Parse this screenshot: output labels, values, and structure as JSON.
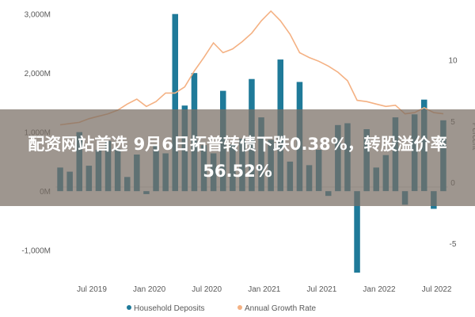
{
  "banner": {
    "headline": "配资网站首选 9月6日拓普转债下跌0.38%，转股溢价率56.52%"
  },
  "chart_data": {
    "type": "bar",
    "title": "",
    "y_left": {
      "ticks": [
        "3,000M",
        "2,000M",
        "1,000M",
        "0M",
        "-1,000M"
      ],
      "ylim": [
        -1300,
        3050
      ]
    },
    "y_right": {
      "label": "Percent",
      "ticks": [
        "10",
        "5",
        "0",
        "-5"
      ],
      "ylim": [
        -7,
        14
      ]
    },
    "x_ticks": [
      "Jul 2019",
      "Jan 2020",
      "Jul 2020",
      "Jan 2021",
      "Jul 2021",
      "Jan 2022",
      "Jul 2022"
    ],
    "series": [
      {
        "name": "Household Deposits",
        "type": "bar",
        "axis": "left",
        "color": "#1f7a99",
        "values": [
          400,
          330,
          1000,
          430,
          700,
          850,
          720,
          240,
          620,
          -50,
          780,
          640,
          3000,
          1450,
          2000,
          780,
          640,
          1700,
          790,
          890,
          1900,
          1250,
          870,
          2230,
          500,
          1850,
          440,
          700,
          -80,
          1120,
          1150,
          -1380,
          1050,
          400,
          610,
          1250,
          -230,
          1300,
          1550,
          -300,
          1200
        ]
      },
      {
        "name": "Annual Growth Rate",
        "type": "line",
        "axis": "right",
        "color": "#f4b183",
        "values": [
          4.7,
          4.8,
          4.9,
          5.2,
          5.4,
          5.6,
          5.9,
          6.4,
          6.8,
          6.2,
          6.6,
          7.3,
          7.3,
          7.8,
          9.1,
          10.2,
          11.4,
          10.6,
          10.9,
          11.5,
          12.2,
          13.2,
          14.0,
          13.2,
          12.1,
          10.6,
          10.2,
          9.9,
          9.5,
          9.0,
          8.3,
          6.7,
          6.6,
          6.4,
          6.2,
          6.3,
          5.6,
          5.7,
          6.1,
          5.7,
          5.6
        ]
      }
    ],
    "legend_position": "bottom",
    "grid": false
  }
}
